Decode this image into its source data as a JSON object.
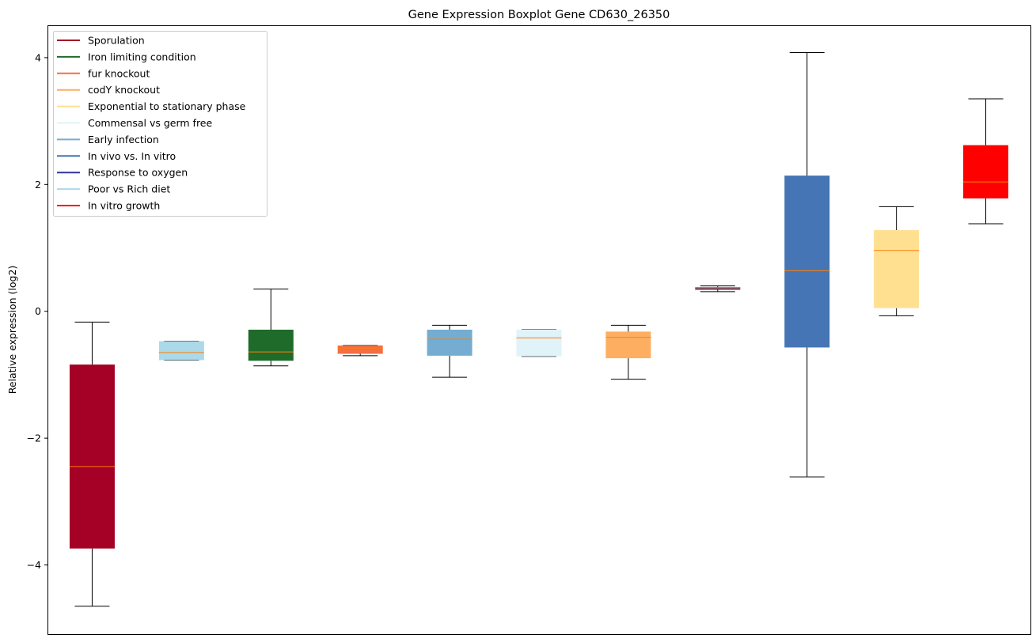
{
  "chart_data": {
    "type": "box",
    "title": "Gene Expression Boxplot Gene CD630_26350",
    "xlabel": "",
    "ylabel": "Relative expression (log2)",
    "ylim": [
      -5.09,
      4.51
    ],
    "yticks": [
      -4,
      -2,
      0,
      2,
      4
    ],
    "ytick_labels": [
      "−4",
      "−2",
      "0",
      "2",
      "4"
    ],
    "grid": false,
    "legend_position": "top-left",
    "median_color": "#ff7f0e",
    "legend": [
      {
        "label": "Sporulation",
        "color": "#a50026"
      },
      {
        "label": "Iron limiting condition",
        "color": "#1f6b2a"
      },
      {
        "label": "fur knockout",
        "color": "#f46d43"
      },
      {
        "label": "codY knockout",
        "color": "#fdae61"
      },
      {
        "label": "Exponential to stationary phase",
        "color": "#fee090"
      },
      {
        "label": "Commensal vs germ free",
        "color": "#e0f3f8"
      },
      {
        "label": "Early infection",
        "color": "#74add1"
      },
      {
        "label": "In vivo vs. In vitro",
        "color": "#4575b4"
      },
      {
        "label": "Response to oxygen",
        "color": "#313695"
      },
      {
        "label": "Poor vs Rich diet",
        "color": "#abd9e9"
      },
      {
        "label": "In vitro growth",
        "color": "#ff0000"
      }
    ],
    "boxes": [
      {
        "color": "#a50026",
        "whislo": -4.65,
        "q1": -3.74,
        "med": -2.45,
        "q3": -0.84,
        "whishi": -0.17
      },
      {
        "color": "#abd9e9",
        "whislo": -0.77,
        "q1": -0.77,
        "med": -0.65,
        "q3": -0.47,
        "whishi": -0.47
      },
      {
        "color": "#1f6b2a",
        "whislo": -0.86,
        "q1": -0.78,
        "med": -0.64,
        "q3": -0.29,
        "whishi": 0.35
      },
      {
        "color": "#f46d43",
        "whislo": -0.7,
        "q1": -0.67,
        "med": -0.58,
        "q3": -0.54,
        "whishi": -0.54
      },
      {
        "color": "#74add1",
        "whislo": -1.04,
        "q1": -0.7,
        "med": -0.44,
        "q3": -0.29,
        "whishi": -0.22
      },
      {
        "color": "#e0f3f8",
        "whislo": -0.71,
        "q1": -0.71,
        "med": -0.42,
        "q3": -0.29,
        "whishi": -0.29
      },
      {
        "color": "#fdae61",
        "whislo": -1.07,
        "q1": -0.74,
        "med": -0.41,
        "q3": -0.32,
        "whishi": -0.22
      },
      {
        "color": "#313695",
        "whislo": 0.31,
        "q1": 0.34,
        "med": 0.37,
        "q3": 0.38,
        "whishi": 0.4
      },
      {
        "color": "#4575b4",
        "whislo": -2.61,
        "q1": -0.57,
        "med": 0.64,
        "q3": 2.14,
        "whishi": 4.08
      },
      {
        "color": "#fee090",
        "whislo": -0.07,
        "q1": 0.05,
        "med": 0.96,
        "q3": 1.28,
        "whishi": 1.65
      },
      {
        "color": "#ff0000",
        "whislo": 1.38,
        "q1": 1.78,
        "med": 2.04,
        "q3": 2.62,
        "whishi": 3.35
      }
    ]
  }
}
